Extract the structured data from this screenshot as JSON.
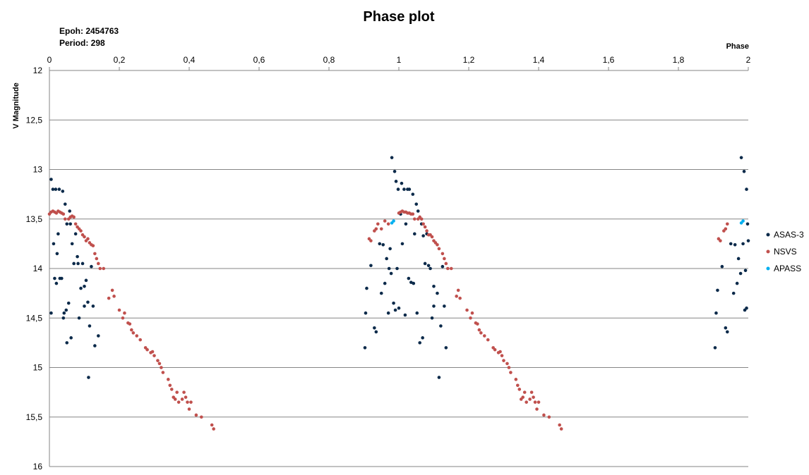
{
  "chart_data": {
    "type": "scatter",
    "title": "Phase plot",
    "annotations": [
      "Epoh: 2454763",
      "Period: 298"
    ],
    "xlabel": "Phase",
    "ylabel": "V Magnitude",
    "xlim": [
      0,
      2
    ],
    "ylim": [
      12,
      16
    ],
    "y_inverted": true,
    "x_axis_position": "top",
    "grid": "horizontal",
    "legend_position": "right",
    "x_ticks": [
      "0",
      "0,2",
      "0,4",
      "0,6",
      "0,8",
      "1",
      "1,2",
      "1,4",
      "1,6",
      "1,8",
      "2"
    ],
    "y_ticks": [
      "12",
      "12,5",
      "13",
      "13,5",
      "14",
      "14,5",
      "15",
      "15,5",
      "16"
    ],
    "x_tick_values": [
      0,
      0.2,
      0.4,
      0.6,
      0.8,
      1,
      1.2,
      1.4,
      1.6,
      1.8,
      2
    ],
    "y_tick_values": [
      12,
      12.5,
      13,
      13.5,
      14,
      14.5,
      15,
      15.5,
      16
    ],
    "series": [
      {
        "name": "ASAS-3",
        "color": "#0b2a4a",
        "points": [
          [
            0.005,
            13.1
          ],
          [
            0.005,
            14.45
          ],
          [
            0.01,
            13.2
          ],
          [
            0.012,
            13.75
          ],
          [
            0.015,
            14.1
          ],
          [
            0.018,
            13.2
          ],
          [
            0.02,
            14.15
          ],
          [
            0.022,
            13.85
          ],
          [
            0.025,
            13.65
          ],
          [
            0.028,
            13.2
          ],
          [
            0.03,
            14.1
          ],
          [
            0.035,
            14.1
          ],
          [
            0.038,
            13.22
          ],
          [
            0.04,
            14.5
          ],
          [
            0.042,
            14.45
          ],
          [
            0.045,
            13.35
          ],
          [
            0.048,
            14.42
          ],
          [
            0.05,
            13.55
          ],
          [
            0.05,
            14.75
          ],
          [
            0.055,
            14.35
          ],
          [
            0.058,
            13.42
          ],
          [
            0.06,
            13.55
          ],
          [
            0.062,
            14.7
          ],
          [
            0.065,
            13.75
          ],
          [
            0.07,
            13.95
          ],
          [
            0.075,
            13.65
          ],
          [
            0.08,
            13.88
          ],
          [
            0.082,
            13.95
          ],
          [
            0.085,
            14.5
          ],
          [
            0.09,
            14.2
          ],
          [
            0.095,
            13.95
          ],
          [
            0.1,
            14.18
          ],
          [
            0.1,
            14.38
          ],
          [
            0.105,
            14.12
          ],
          [
            0.11,
            14.34
          ],
          [
            0.112,
            15.1
          ],
          [
            0.115,
            14.58
          ],
          [
            0.12,
            13.98
          ],
          [
            0.125,
            14.38
          ],
          [
            0.13,
            14.78
          ],
          [
            0.14,
            14.68
          ],
          [
            0.903,
            14.8
          ],
          [
            0.905,
            14.45
          ],
          [
            0.908,
            14.2
          ],
          [
            0.92,
            13.97
          ],
          [
            0.93,
            14.6
          ],
          [
            0.935,
            14.64
          ],
          [
            0.945,
            13.75
          ],
          [
            0.95,
            14.25
          ],
          [
            0.955,
            13.76
          ],
          [
            0.96,
            14.15
          ],
          [
            0.965,
            13.9
          ],
          [
            0.97,
            14.45
          ],
          [
            0.972,
            14.0
          ],
          [
            0.975,
            13.8
          ],
          [
            0.978,
            14.05
          ],
          [
            0.98,
            12.88
          ],
          [
            0.985,
            14.35
          ],
          [
            0.988,
            13.02
          ],
          [
            0.99,
            14.42
          ],
          [
            0.992,
            13.12
          ],
          [
            0.995,
            14.0
          ],
          [
            0.998,
            13.2
          ],
          [
            1.0,
            14.4
          ],
          [
            1.005,
            13.45
          ],
          [
            1.008,
            13.14
          ],
          [
            1.01,
            13.75
          ],
          [
            1.015,
            13.2
          ],
          [
            1.018,
            14.47
          ],
          [
            1.02,
            13.55
          ],
          [
            1.025,
            13.2
          ],
          [
            1.028,
            14.1
          ],
          [
            1.03,
            13.2
          ],
          [
            1.035,
            14.14
          ],
          [
            1.04,
            13.25
          ],
          [
            1.042,
            14.15
          ],
          [
            1.045,
            13.65
          ],
          [
            1.05,
            13.35
          ],
          [
            1.052,
            14.45
          ],
          [
            1.055,
            13.42
          ],
          [
            1.06,
            14.75
          ],
          [
            1.065,
            13.55
          ],
          [
            1.068,
            14.7
          ],
          [
            1.07,
            13.67
          ],
          [
            1.075,
            13.95
          ],
          [
            1.08,
            13.65
          ],
          [
            1.085,
            13.97
          ],
          [
            1.09,
            14.0
          ],
          [
            1.095,
            14.5
          ],
          [
            1.1,
            14.18
          ],
          [
            1.1,
            14.38
          ],
          [
            1.11,
            14.25
          ],
          [
            1.115,
            15.1
          ],
          [
            1.12,
            14.58
          ],
          [
            1.125,
            13.98
          ],
          [
            1.13,
            14.38
          ],
          [
            1.135,
            14.8
          ],
          [
            1.905,
            14.8
          ],
          [
            1.908,
            14.45
          ],
          [
            1.912,
            14.22
          ],
          [
            1.925,
            13.98
          ],
          [
            1.935,
            14.6
          ],
          [
            1.94,
            14.64
          ],
          [
            1.95,
            13.75
          ],
          [
            1.958,
            14.25
          ],
          [
            1.962,
            13.76
          ],
          [
            1.968,
            14.15
          ],
          [
            1.972,
            13.9
          ],
          [
            1.978,
            14.05
          ],
          [
            1.98,
            12.88
          ],
          [
            1.985,
            13.75
          ],
          [
            1.988,
            13.02
          ],
          [
            1.99,
            14.42
          ],
          [
            1.992,
            14.02
          ],
          [
            1.995,
            13.2
          ],
          [
            1.995,
            14.4
          ],
          [
            1.998,
            13.55
          ],
          [
            2.0,
            13.72
          ]
        ]
      },
      {
        "name": "NSVS",
        "color": "#c0504d",
        "points": [
          [
            0.0,
            13.45
          ],
          [
            0.005,
            13.43
          ],
          [
            0.01,
            13.42
          ],
          [
            0.015,
            13.43
          ],
          [
            0.02,
            13.44
          ],
          [
            0.025,
            13.42
          ],
          [
            0.03,
            13.43
          ],
          [
            0.035,
            13.44
          ],
          [
            0.04,
            13.45
          ],
          [
            0.045,
            13.5
          ],
          [
            0.055,
            13.5
          ],
          [
            0.06,
            13.48
          ],
          [
            0.065,
            13.47
          ],
          [
            0.07,
            13.48
          ],
          [
            0.075,
            13.55
          ],
          [
            0.08,
            13.58
          ],
          [
            0.085,
            13.6
          ],
          [
            0.09,
            13.62
          ],
          [
            0.095,
            13.66
          ],
          [
            0.1,
            13.68
          ],
          [
            0.105,
            13.72
          ],
          [
            0.11,
            13.7
          ],
          [
            0.115,
            13.74
          ],
          [
            0.12,
            13.76
          ],
          [
            0.125,
            13.77
          ],
          [
            0.13,
            13.85
          ],
          [
            0.135,
            13.9
          ],
          [
            0.14,
            13.95
          ],
          [
            0.145,
            14.0
          ],
          [
            0.155,
            14.0
          ],
          [
            0.17,
            14.3
          ],
          [
            0.18,
            14.22
          ],
          [
            0.185,
            14.28
          ],
          [
            0.2,
            14.42
          ],
          [
            0.21,
            14.5
          ],
          [
            0.215,
            14.45
          ],
          [
            0.225,
            14.55
          ],
          [
            0.23,
            14.56
          ],
          [
            0.235,
            14.62
          ],
          [
            0.24,
            14.65
          ],
          [
            0.25,
            14.68
          ],
          [
            0.26,
            14.72
          ],
          [
            0.275,
            14.8
          ],
          [
            0.28,
            14.82
          ],
          [
            0.29,
            14.85
          ],
          [
            0.295,
            14.84
          ],
          [
            0.3,
            14.88
          ],
          [
            0.31,
            14.93
          ],
          [
            0.315,
            14.96
          ],
          [
            0.32,
            15.0
          ],
          [
            0.325,
            15.05
          ],
          [
            0.34,
            15.12
          ],
          [
            0.345,
            15.18
          ],
          [
            0.35,
            15.22
          ],
          [
            0.355,
            15.3
          ],
          [
            0.36,
            15.32
          ],
          [
            0.365,
            15.25
          ],
          [
            0.37,
            15.35
          ],
          [
            0.38,
            15.32
          ],
          [
            0.385,
            15.25
          ],
          [
            0.39,
            15.3
          ],
          [
            0.395,
            15.35
          ],
          [
            0.4,
            15.42
          ],
          [
            0.405,
            15.35
          ],
          [
            0.42,
            15.48
          ],
          [
            0.435,
            15.5
          ],
          [
            0.465,
            15.58
          ],
          [
            0.47,
            15.62
          ],
          [
            0.915,
            13.7
          ],
          [
            0.92,
            13.72
          ],
          [
            0.93,
            13.62
          ],
          [
            0.935,
            13.6
          ],
          [
            0.94,
            13.55
          ],
          [
            0.95,
            13.6
          ],
          [
            0.96,
            13.52
          ],
          [
            0.97,
            13.55
          ],
          [
            1.0,
            13.44
          ],
          [
            1.005,
            13.43
          ],
          [
            1.01,
            13.42
          ],
          [
            1.015,
            13.43
          ],
          [
            1.02,
            13.43
          ],
          [
            1.025,
            13.44
          ],
          [
            1.03,
            13.44
          ],
          [
            1.035,
            13.45
          ],
          [
            1.04,
            13.45
          ],
          [
            1.045,
            13.5
          ],
          [
            1.055,
            13.5
          ],
          [
            1.06,
            13.48
          ],
          [
            1.065,
            13.5
          ],
          [
            1.07,
            13.55
          ],
          [
            1.075,
            13.58
          ],
          [
            1.08,
            13.62
          ],
          [
            1.085,
            13.66
          ],
          [
            1.09,
            13.66
          ],
          [
            1.095,
            13.68
          ],
          [
            1.1,
            13.72
          ],
          [
            1.105,
            13.74
          ],
          [
            1.11,
            13.76
          ],
          [
            1.115,
            13.8
          ],
          [
            1.125,
            13.85
          ],
          [
            1.13,
            13.9
          ],
          [
            1.135,
            13.95
          ],
          [
            1.14,
            14.0
          ],
          [
            1.15,
            14.0
          ],
          [
            1.165,
            14.28
          ],
          [
            1.17,
            14.22
          ],
          [
            1.175,
            14.3
          ],
          [
            1.195,
            14.42
          ],
          [
            1.205,
            14.5
          ],
          [
            1.21,
            14.45
          ],
          [
            1.22,
            14.55
          ],
          [
            1.225,
            14.56
          ],
          [
            1.23,
            14.62
          ],
          [
            1.235,
            14.65
          ],
          [
            1.245,
            14.68
          ],
          [
            1.255,
            14.72
          ],
          [
            1.27,
            14.8
          ],
          [
            1.275,
            14.82
          ],
          [
            1.285,
            14.85
          ],
          [
            1.29,
            14.84
          ],
          [
            1.295,
            14.88
          ],
          [
            1.3,
            14.93
          ],
          [
            1.31,
            14.96
          ],
          [
            1.315,
            15.0
          ],
          [
            1.32,
            15.05
          ],
          [
            1.335,
            15.12
          ],
          [
            1.34,
            15.18
          ],
          [
            1.345,
            15.22
          ],
          [
            1.35,
            15.32
          ],
          [
            1.355,
            15.3
          ],
          [
            1.36,
            15.25
          ],
          [
            1.365,
            15.35
          ],
          [
            1.375,
            15.32
          ],
          [
            1.38,
            15.25
          ],
          [
            1.385,
            15.3
          ],
          [
            1.39,
            15.35
          ],
          [
            1.395,
            15.42
          ],
          [
            1.4,
            15.35
          ],
          [
            1.415,
            15.48
          ],
          [
            1.43,
            15.5
          ],
          [
            1.46,
            15.58
          ],
          [
            1.465,
            15.62
          ],
          [
            1.915,
            13.7
          ],
          [
            1.92,
            13.72
          ],
          [
            1.93,
            13.62
          ],
          [
            1.935,
            13.6
          ],
          [
            1.94,
            13.55
          ]
        ]
      },
      {
        "name": "APASS",
        "color": "#00b0f0",
        "points": [
          [
            0.98,
            13.54
          ],
          [
            0.985,
            13.52
          ],
          [
            1.98,
            13.54
          ],
          [
            1.985,
            13.52
          ]
        ]
      }
    ]
  }
}
